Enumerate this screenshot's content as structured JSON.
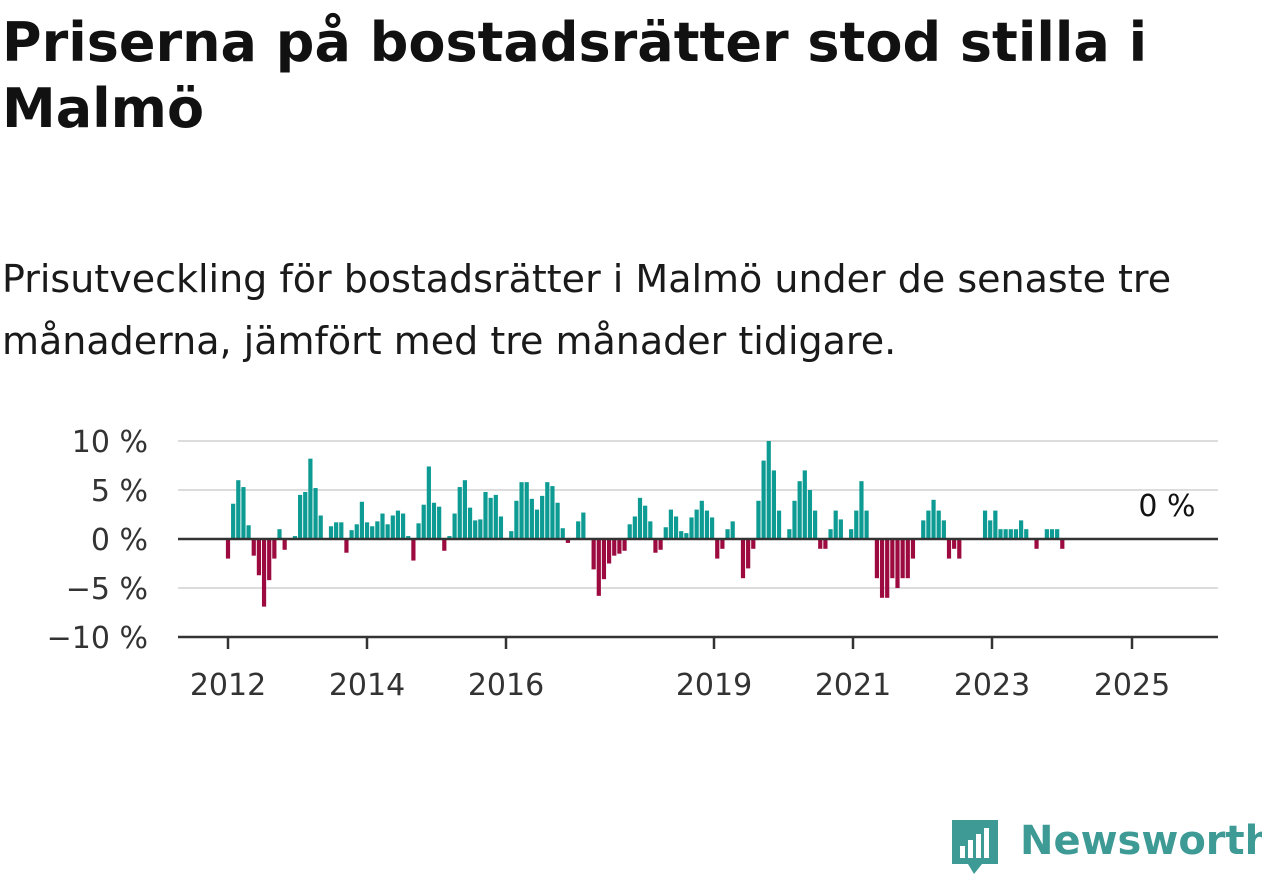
{
  "title": "Priserna på bostadsrätter stod stilla i Malmö",
  "subtitle": "Prisutveckling för bostadsrätter i Malmö under de senaste tre månaderna, jämfört med tre månader tidigare.",
  "brand": {
    "name": "Newsworthy",
    "color": "#3e9a95",
    "icon": "bar-chart-speech-bubble-icon"
  },
  "colors": {
    "positive": "#0d9b93",
    "negative": "#9c0a3f",
    "grid": "#dcdcdc",
    "axis": "#333333"
  },
  "chart_data": {
    "type": "bar",
    "title": "Priserna på bostadsrätter stod stilla i Malmö",
    "subtitle": "Prisutveckling för bostadsrätter i Malmö under de senaste tre månaderna, jämfört med tre månader tidigare.",
    "xlabel": "",
    "ylabel": "",
    "ylim": [
      -10,
      10
    ],
    "yticks": [
      10,
      5,
      0,
      -5,
      -10
    ],
    "ytick_labels": [
      "10 %",
      "5 %",
      "0 %",
      "−5 %",
      "−10 %"
    ],
    "xtick_labels": [
      "2012",
      "2014",
      "2016",
      "2019",
      "2021",
      "2023",
      "2025"
    ],
    "xtick_positions": [
      2012,
      2014,
      2016,
      2019,
      2021,
      2023,
      2025
    ],
    "x_start": 2012,
    "months_per_step": 1,
    "grid": true,
    "end_label": "0 %",
    "series": [
      {
        "values": [
          -2,
          3.6,
          6,
          5.3,
          1.4,
          -1.7,
          -3.7,
          -6.9,
          -4.2,
          -2,
          1,
          -1.1,
          0,
          0.3,
          4.5,
          4.8,
          8.2,
          5.2,
          2.4,
          0,
          1.3,
          1.7,
          1.7,
          -1.4,
          0.9,
          1.5,
          3.8,
          1.7,
          1.3,
          1.8,
          2.6,
          1.5,
          2.4,
          2.9,
          2.6,
          0.3,
          -2.2,
          1.6,
          3.5,
          7.4,
          3.7,
          3.3,
          -1.2,
          0.3,
          2.6,
          5.3,
          6,
          3.2,
          1.9,
          2,
          4.8,
          4.2,
          4.5,
          2.3,
          0,
          0.8,
          3.9,
          5.8,
          5.8,
          4.1,
          3,
          4.4,
          5.8,
          5.4,
          3.7,
          1.1,
          -0.4,
          0,
          1.8,
          2.7,
          0,
          -3.1,
          -5.8,
          -4.1,
          -2.5,
          -1.7,
          -1.5,
          -1.2,
          1.5,
          2.3,
          4.2,
          3.4,
          1.8,
          -1.4,
          -1.1,
          1.2,
          3,
          2.3,
          0.8,
          0.6,
          2.2,
          3,
          3.9,
          2.9,
          2.2,
          -2,
          -1,
          1,
          1.8,
          0,
          -4,
          -3,
          -1,
          3.9,
          8,
          10,
          7,
          2.9,
          0,
          1,
          3.9,
          5.9,
          7,
          5,
          2.9,
          -1,
          -1,
          1,
          2.9,
          2,
          0,
          1,
          2.9,
          5.9,
          2.9,
          0,
          -4,
          -6,
          -6,
          -4,
          -5,
          -4,
          -4,
          -2,
          0,
          1.9,
          2.9,
          4,
          2.9,
          1.9,
          -2,
          -1,
          -2,
          0,
          0,
          0,
          0,
          2.9,
          1.9,
          2.9,
          1,
          1,
          1,
          1,
          1.9,
          1,
          0,
          -1,
          0,
          1,
          1,
          1,
          -1,
          0
        ]
      }
    ]
  }
}
